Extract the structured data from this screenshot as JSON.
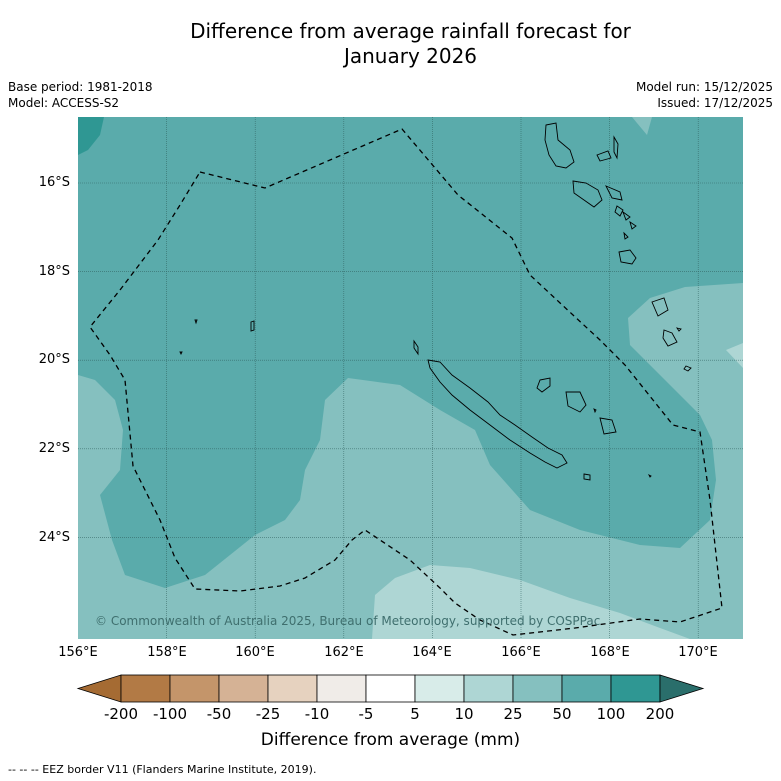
{
  "title": {
    "line1": "Difference from average rainfall forecast for",
    "line2": "January 2026"
  },
  "meta_left": {
    "base_period": "Base period: 1981-2018",
    "model": "Model: ACCESS-S2"
  },
  "meta_right": {
    "model_run": "Model run: 15/12/2025",
    "issued": "Issued: 17/12/2025"
  },
  "map": {
    "latitude_labels": [
      "16°S",
      "18°S",
      "20°S",
      "22°S",
      "24°S"
    ],
    "longitude_labels": [
      "156°E",
      "158°E",
      "160°E",
      "162°E",
      "164°E",
      "166°E",
      "168°E",
      "170°E"
    ],
    "copyright": "© Commonwealth of Australia 2025, Bureau of Meteorology, supported by COSPPac"
  },
  "colorbar": {
    "ticks": [
      "-200",
      "-100",
      "-50",
      "-25",
      "-10",
      "-5",
      "5",
      "10",
      "25",
      "50",
      "100",
      "200"
    ],
    "colors": [
      "#a56b33",
      "#b27a45",
      "#c4956a",
      "#d5b295",
      "#e6d2bf",
      "#f0ece8",
      "#ffffff",
      "#d8ece9",
      "#aed6d4",
      "#85c0bf",
      "#5aabab",
      "#2f9793",
      "#2a6e6b"
    ],
    "title": "Difference from average (mm)"
  },
  "footnote": "--  --  -- EEZ border V11 (Flanders Marine Institute, 2019)."
}
